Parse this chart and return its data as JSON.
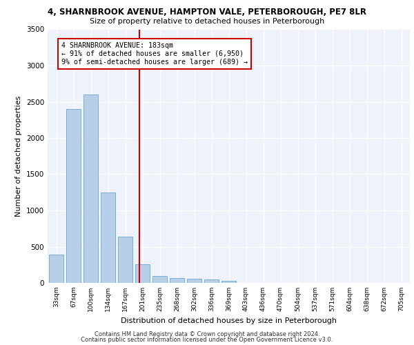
{
  "title1": "4, SHARNBROOK AVENUE, HAMPTON VALE, PETERBOROUGH, PE7 8LR",
  "title2": "Size of property relative to detached houses in Peterborough",
  "xlabel": "Distribution of detached houses by size in Peterborough",
  "ylabel": "Number of detached properties",
  "categories": [
    "33sqm",
    "67sqm",
    "100sqm",
    "134sqm",
    "167sqm",
    "201sqm",
    "235sqm",
    "268sqm",
    "302sqm",
    "336sqm",
    "369sqm",
    "403sqm",
    "436sqm",
    "470sqm",
    "504sqm",
    "537sqm",
    "571sqm",
    "604sqm",
    "638sqm",
    "672sqm",
    "705sqm"
  ],
  "values": [
    390,
    2400,
    2600,
    1250,
    640,
    260,
    100,
    65,
    60,
    45,
    30,
    0,
    0,
    0,
    0,
    0,
    0,
    0,
    0,
    0,
    0
  ],
  "bar_color": "#b8cfe8",
  "bar_edge_color": "#7aadd4",
  "red_line_x": 4.82,
  "annotation_text": "4 SHARNBROOK AVENUE: 183sqm\n← 91% of detached houses are smaller (6,950)\n9% of semi-detached houses are larger (689) →",
  "annotation_box_color": "#ffffff",
  "annotation_box_edge_color": "#cc0000",
  "red_line_color": "#cc0000",
  "background_color": "#eef2fb",
  "grid_color": "#ffffff",
  "ylim": [
    0,
    3500
  ],
  "yticks": [
    0,
    500,
    1000,
    1500,
    2000,
    2500,
    3000,
    3500
  ],
  "footer1": "Contains HM Land Registry data © Crown copyright and database right 2024.",
  "footer2": "Contains public sector information licensed under the Open Government Licence v3.0."
}
